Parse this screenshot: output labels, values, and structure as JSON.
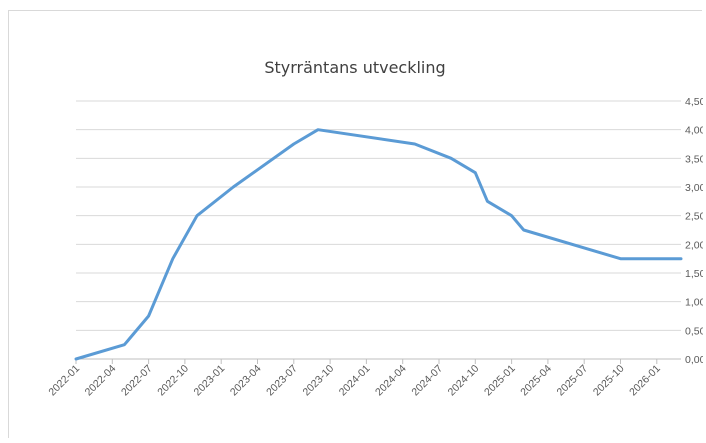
{
  "chart_data": {
    "type": "line",
    "title": "Styrräntans utveckling",
    "xlabel": "",
    "ylabel": "",
    "ylim": [
      0,
      4.5
    ],
    "y_ticks": [
      "0,00",
      "0,50",
      "1,00",
      "1,50",
      "2,00",
      "2,50",
      "3,00",
      "3,50",
      "4,00",
      "4,50"
    ],
    "y_tick_values": [
      0,
      0.5,
      1,
      1.5,
      2,
      2.5,
      3,
      3.5,
      4,
      4.5
    ],
    "x_ticks": [
      "2022-01",
      "2022-04",
      "2022-07",
      "2022-10",
      "2023-01",
      "2023-04",
      "2023-07",
      "2023-10",
      "2024-01",
      "2024-04",
      "2024-07",
      "2024-10",
      "2025-01",
      "2025-04",
      "2025-07",
      "2025-10",
      "2026-01"
    ],
    "x_range": [
      "2022-01",
      "2026-03"
    ],
    "grid": true,
    "y_axis_side": "right",
    "line_color": "#5b9bd5",
    "series": [
      {
        "x": [
          "2022-01",
          "2022-05",
          "2022-07",
          "2022-08",
          "2022-09",
          "2022-11",
          "2023-02",
          "2023-07",
          "2023-09",
          "2024-05",
          "2024-08",
          "2024-10",
          "2024-11",
          "2025-01",
          "2025-02",
          "2025-10",
          "2026-03"
        ],
        "values": [
          0,
          0.25,
          0.75,
          1.25,
          1.75,
          2.5,
          3,
          3.75,
          4,
          3.75,
          3.5,
          3.25,
          2.75,
          2.5,
          2.25,
          1.75,
          1.75
        ]
      }
    ]
  }
}
